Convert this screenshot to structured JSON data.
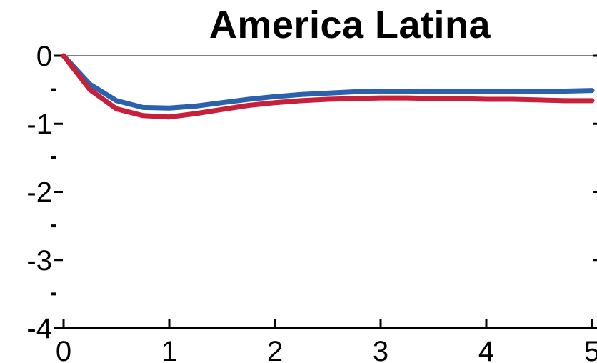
{
  "chart_data": {
    "type": "line",
    "title": "America Latina",
    "xlabel": "",
    "ylabel": "",
    "xlim": [
      0,
      5
    ],
    "ylim": [
      -4,
      0
    ],
    "x_ticks": [
      0,
      1,
      2,
      3,
      4,
      5
    ],
    "x_tick_labels": [
      "0",
      "1",
      "2",
      "3",
      "4",
      "5"
    ],
    "y_ticks": [
      0,
      -1,
      -2,
      -3,
      -4
    ],
    "y_tick_labels": [
      "0",
      "-1",
      "-2",
      "-3",
      "-4"
    ],
    "y_minor_ticks": [
      -0.5,
      -1.5,
      -2.5,
      -3.5
    ],
    "grid": false,
    "zero_line": true,
    "series": [
      {
        "color": "#2a62ad",
        "x": [
          0,
          0.25,
          0.5,
          0.75,
          1,
          1.25,
          1.5,
          1.75,
          2,
          2.25,
          2.5,
          2.75,
          3,
          3.25,
          3.5,
          3.75,
          4,
          4.25,
          4.5,
          4.75,
          5
        ],
        "y": [
          0,
          -0.42,
          -0.66,
          -0.76,
          -0.77,
          -0.74,
          -0.69,
          -0.64,
          -0.6,
          -0.57,
          -0.55,
          -0.53,
          -0.52,
          -0.52,
          -0.52,
          -0.52,
          -0.52,
          -0.52,
          -0.52,
          -0.52,
          -0.51
        ]
      },
      {
        "color": "#c8203a",
        "x": [
          0,
          0.25,
          0.5,
          0.75,
          1,
          1.25,
          1.5,
          1.75,
          2,
          2.25,
          2.5,
          2.75,
          3,
          3.25,
          3.5,
          3.75,
          4,
          4.25,
          4.5,
          4.75,
          5
        ],
        "y": [
          0,
          -0.5,
          -0.78,
          -0.88,
          -0.9,
          -0.85,
          -0.79,
          -0.73,
          -0.69,
          -0.66,
          -0.64,
          -0.63,
          -0.62,
          -0.62,
          -0.63,
          -0.63,
          -0.64,
          -0.64,
          -0.65,
          -0.66,
          -0.66
        ]
      }
    ]
  }
}
